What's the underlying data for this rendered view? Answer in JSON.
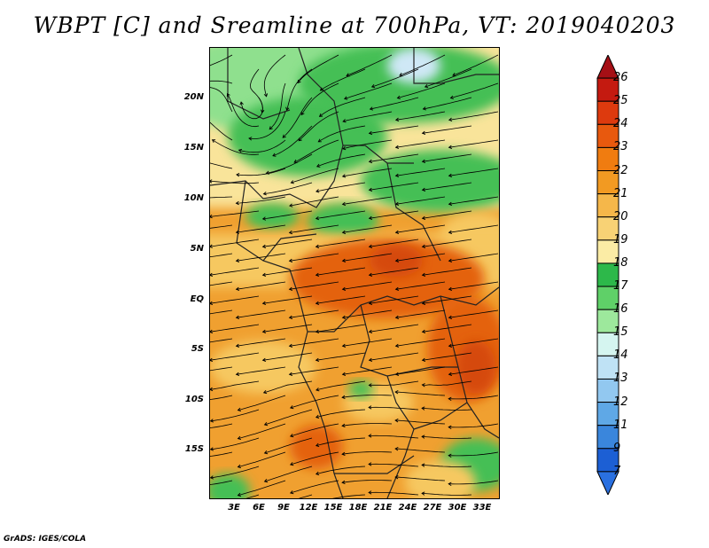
{
  "title": "WBPT [C] and Sreamline at 700hPa, VT: 2019040203",
  "credit": "GrADS: IGES/COLA",
  "lat_labels": [
    "20N",
    "15N",
    "10N",
    "5N",
    "EQ",
    "5S",
    "10S",
    "15S"
  ],
  "lon_labels": [
    "3E",
    "6E",
    "9E",
    "12E",
    "15E",
    "18E",
    "21E",
    "24E",
    "27E",
    "30E",
    "33E"
  ],
  "colorbar": {
    "levels": [
      "26",
      "25",
      "24",
      "23",
      "22",
      "21",
      "20",
      "19",
      "18",
      "17",
      "16",
      "15",
      "14",
      "13",
      "12",
      "11",
      "9",
      "7"
    ],
    "colors": [
      "#a50f15",
      "#c41a10",
      "#dd3a0e",
      "#e8590e",
      "#f07c10",
      "#f29a22",
      "#f5b74a",
      "#f8d275",
      "#fbeca5",
      "#2db84a",
      "#5fd068",
      "#9de89c",
      "#d5f5f0",
      "#bfe2f5",
      "#92c8f0",
      "#5fa8e6",
      "#3a86dc",
      "#1c5fd4",
      "#2a70e0"
    ]
  },
  "map_colors": {
    "warm": "#f0a030",
    "hot": "#e4620e",
    "hottest": "#d54a0c",
    "mild": "#f6c860",
    "cool": "#f9e49a",
    "green": "#45bf55",
    "light_green": "#8fe08e",
    "pale_blue": "#cfe8f6"
  }
}
